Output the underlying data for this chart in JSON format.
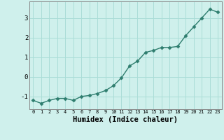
{
  "x": [
    0,
    1,
    2,
    3,
    4,
    5,
    6,
    7,
    8,
    9,
    10,
    11,
    12,
    13,
    14,
    15,
    16,
    17,
    18,
    19,
    20,
    21,
    22,
    23
  ],
  "y": [
    -1.2,
    -1.35,
    -1.2,
    -1.1,
    -1.1,
    -1.2,
    -1.0,
    -0.95,
    -0.85,
    -0.7,
    -0.45,
    -0.05,
    0.55,
    0.8,
    1.25,
    1.35,
    1.5,
    1.5,
    1.55,
    2.1,
    2.55,
    3.0,
    3.45,
    3.3
  ],
  "line_color": "#2e7d6e",
  "marker": "D",
  "marker_size": 2.5,
  "bg_color": "#cff0ec",
  "grid_color": "#aaddd7",
  "xlabel": "Humidex (Indice chaleur)",
  "xlim": [
    -0.5,
    23.5
  ],
  "ylim": [
    -1.65,
    3.85
  ],
  "yticks": [
    -1,
    0,
    1,
    2,
    3
  ],
  "xticks": [
    0,
    1,
    2,
    3,
    4,
    5,
    6,
    7,
    8,
    9,
    10,
    11,
    12,
    13,
    14,
    15,
    16,
    17,
    18,
    19,
    20,
    21,
    22,
    23
  ],
  "xtick_fontsize": 5.0,
  "ytick_fontsize": 6.5,
  "xlabel_fontsize": 7.5,
  "linewidth": 1.0
}
